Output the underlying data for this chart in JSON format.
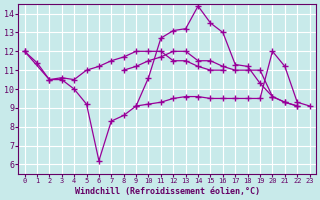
{
  "xlabel": "Windchill (Refroidissement éolien,°C)",
  "background_color": "#c8eaea",
  "grid_color": "#ffffff",
  "line_color": "#990099",
  "xlim": [
    -0.5,
    23.5
  ],
  "ylim": [
    5.5,
    14.5
  ],
  "yticks": [
    6,
    7,
    8,
    9,
    10,
    11,
    12,
    13,
    14
  ],
  "xticks": [
    0,
    1,
    2,
    3,
    4,
    5,
    6,
    7,
    8,
    9,
    10,
    11,
    12,
    13,
    14,
    15,
    16,
    17,
    18,
    19,
    20,
    21,
    22,
    23
  ],
  "series_x": [
    [
      0,
      1,
      2,
      3,
      4,
      5,
      6,
      7,
      8,
      9,
      10,
      11,
      12,
      13,
      14,
      15,
      16,
      17,
      18,
      19,
      20,
      21,
      22
    ],
    [
      0,
      2,
      3,
      4,
      5,
      6,
      7,
      8,
      9,
      10,
      11,
      12,
      13,
      14,
      15,
      16
    ],
    [
      8,
      9,
      10,
      11,
      12,
      13,
      14,
      15,
      16,
      17,
      18,
      19,
      20,
      21,
      22
    ],
    [
      9,
      10,
      11,
      12,
      13,
      14,
      15,
      16,
      17,
      18,
      19,
      20,
      21,
      22,
      23
    ]
  ],
  "series_y": [
    [
      12.0,
      11.4,
      10.5,
      10.5,
      10.0,
      9.2,
      6.2,
      8.3,
      8.6,
      9.1,
      10.6,
      12.7,
      13.1,
      13.2,
      14.4,
      13.5,
      13.0,
      11.3,
      11.2,
      10.3,
      9.6,
      9.3,
      9.1
    ],
    [
      12.0,
      10.5,
      10.6,
      10.5,
      11.0,
      11.2,
      11.5,
      11.7,
      12.0,
      12.0,
      12.0,
      11.5,
      11.5,
      11.2,
      11.0,
      11.0
    ],
    [
      11.0,
      11.2,
      11.5,
      11.7,
      12.0,
      12.0,
      11.5,
      11.5,
      11.2,
      11.0,
      11.0,
      11.0,
      9.6,
      9.3,
      9.1
    ],
    [
      9.1,
      9.2,
      9.3,
      9.5,
      9.6,
      9.6,
      9.5,
      9.5,
      9.5,
      9.5,
      9.5,
      12.0,
      11.2,
      9.3,
      9.1
    ]
  ]
}
